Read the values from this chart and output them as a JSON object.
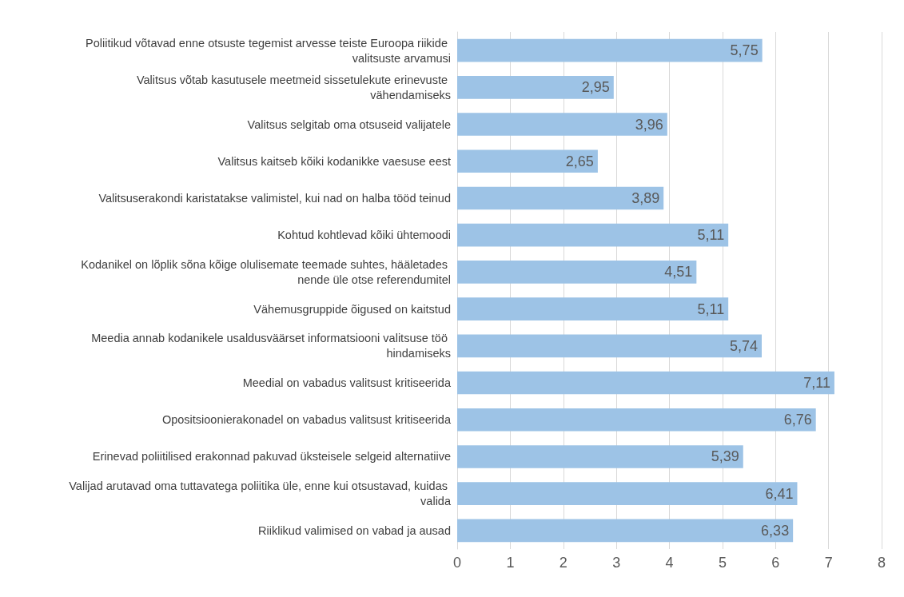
{
  "chart_data": {
    "type": "bar",
    "orientation": "horizontal",
    "categories": [
      "Poliitikud võtavad enne otsuste tegemist arvesse teiste Euroopa riikide valitsuste arvamusi",
      "Valitsus võtab kasutusele meetmeid sissetulekute erinevuste vähendamiseks",
      "Valitsus selgitab oma otsuseid valijatele",
      "Valitsus kaitseb kõiki kodanikke vaesuse eest",
      "Valitsuserakondi karistatakse valimistel, kui nad on halba tööd teinud",
      "Kohtud kohtlevad kõiki ühtemoodi",
      "Kodanikel on lõplik sõna kõige olulisemate teemade suhtes, hääletades nende üle otse referendumitel",
      "Vähemusgruppide õigused on kaitstud",
      "Meedia annab kodanikele usaldusväärset informatsiooni valitsuse töö hindamiseks",
      "Meedial on vabadus valitsust kritiseerida",
      "Opositsioonierakonadel on vabadus valitsust kritiseerida",
      "Erinevad poliitilised erakonnad pakuvad üksteisele selgeid alternatiive",
      "Valijad arutavad oma tuttavatega poliitika üle, enne kui otsustavad, kuidas valida",
      "Riiklikud valimised on vabad ja ausad"
    ],
    "values": [
      5.75,
      2.95,
      3.96,
      2.65,
      3.89,
      5.11,
      4.51,
      5.11,
      5.74,
      7.11,
      6.76,
      5.39,
      6.41,
      6.33
    ],
    "value_labels": [
      "5,75",
      "2,95",
      "3,96",
      "2,65",
      "3,89",
      "5,11",
      "4,51",
      "5,11",
      "5,74",
      "7,11",
      "6,76",
      "5,39",
      "6,41",
      "6,33"
    ],
    "color": "#9dc3e6",
    "xlim": [
      0,
      8
    ],
    "xticks": [
      0,
      1,
      2,
      3,
      4,
      5,
      6,
      7,
      8
    ],
    "grid": "x"
  }
}
